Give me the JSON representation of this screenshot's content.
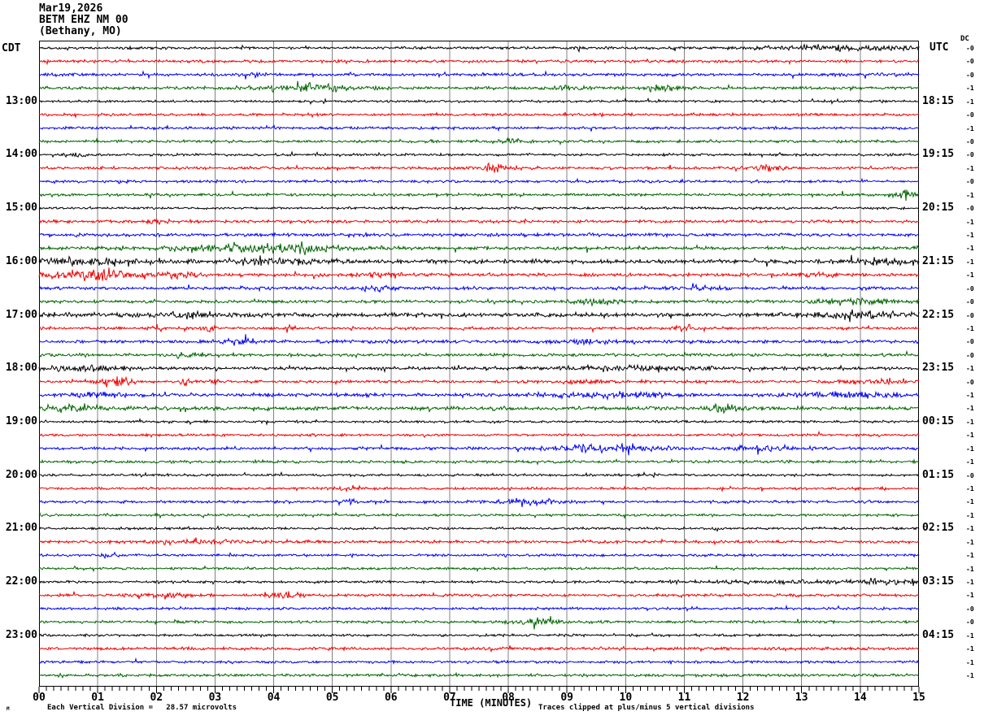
{
  "header": {
    "date": "Mar19,2026",
    "station": "BETM EHZ NM 00",
    "location": "(Bethany, MO)"
  },
  "axes": {
    "left_label": "CDT",
    "right_label": "UTC",
    "dc_label": "DC",
    "x_title": "TIME (MINUTES)",
    "footer_left": "Each Vertical Division =   28.57 microvolts",
    "footer_right": "Traces clipped at plus/minus 5 vertical divisions",
    "corner_glyph": "M",
    "x_ticks": [
      "00",
      "01",
      "02",
      "03",
      "04",
      "05",
      "06",
      "07",
      "08",
      "09",
      "10",
      "11",
      "12",
      "13",
      "14",
      "15"
    ],
    "left_times": [
      "13:00",
      "14:00",
      "15:00",
      "16:00",
      "17:00",
      "18:00",
      "19:00",
      "20:00",
      "21:00",
      "22:00",
      "23:00"
    ],
    "right_times": [
      "18:15",
      "19:15",
      "20:15",
      "21:15",
      "22:15",
      "23:15",
      "00:15",
      "01:15",
      "02:15",
      "03:15",
      "04:15"
    ]
  },
  "colors": {
    "black": "#000000",
    "red": "#ee0000",
    "blue": "#0000ee",
    "green": "#006400",
    "grid": "#808080",
    "frame": "#000000"
  },
  "chart_data": {
    "type": "line",
    "subtype": "helicorder",
    "title": "BETM EHZ NM 00 (Bethany, MO) Mar19,2026",
    "xlabel": "TIME (MINUTES)",
    "x_range_minutes": [
      0,
      15
    ],
    "minutes_per_line": 15,
    "lines_per_hour": 4,
    "grid": "vertical-minute-lines",
    "clip_note": "Traces clipped at plus/minus 5 vertical divisions",
    "vertical_division_microvolts": 28.57,
    "trace_color_cycle": [
      "black",
      "red",
      "blue",
      "green"
    ],
    "traces": [
      {
        "start_cdt": "12:00",
        "color": "black",
        "dc": "-0",
        "amp": 1.0,
        "events": [
          [
            13.8,
            1.3,
            1.8
          ]
        ]
      },
      {
        "start_cdt": "12:15",
        "color": "red",
        "dc": "-0",
        "amp": 1.0,
        "events": []
      },
      {
        "start_cdt": "12:30",
        "color": "blue",
        "dc": "-0",
        "amp": 1.1,
        "events": [
          [
            3.7,
            0.2,
            1.5
          ]
        ]
      },
      {
        "start_cdt": "12:45",
        "color": "green",
        "dc": "-1",
        "amp": 1.1,
        "events": [
          [
            4.5,
            0.8,
            2.2
          ],
          [
            9.0,
            0.3,
            1.6
          ],
          [
            10.6,
            0.3,
            1.4
          ]
        ]
      },
      {
        "start_cdt": "13:00",
        "color": "black",
        "dc": "-1",
        "amp": 0.9,
        "events": []
      },
      {
        "start_cdt": "13:15",
        "color": "red",
        "dc": "-0",
        "amp": 1.0,
        "events": []
      },
      {
        "start_cdt": "13:30",
        "color": "blue",
        "dc": "-1",
        "amp": 1.0,
        "events": []
      },
      {
        "start_cdt": "13:45",
        "color": "green",
        "dc": "-0",
        "amp": 1.0,
        "events": [
          [
            8.0,
            0.3,
            1.2
          ]
        ]
      },
      {
        "start_cdt": "14:00",
        "color": "black",
        "dc": "-0",
        "amp": 0.9,
        "events": [
          [
            0.6,
            0.2,
            1.5
          ]
        ]
      },
      {
        "start_cdt": "14:15",
        "color": "red",
        "dc": "-1",
        "amp": 1.0,
        "events": [
          [
            7.7,
            0.3,
            3.2
          ],
          [
            12.4,
            0.3,
            1.8
          ]
        ]
      },
      {
        "start_cdt": "14:30",
        "color": "blue",
        "dc": "-0",
        "amp": 1.0,
        "events": []
      },
      {
        "start_cdt": "14:45",
        "color": "green",
        "dc": "-1",
        "amp": 1.0,
        "events": [
          [
            14.75,
            0.15,
            3.2
          ]
        ]
      },
      {
        "start_cdt": "15:00",
        "color": "black",
        "dc": "-0",
        "amp": 0.9,
        "events": []
      },
      {
        "start_cdt": "15:15",
        "color": "red",
        "dc": "-1",
        "amp": 1.1,
        "events": [
          [
            2.0,
            0.15,
            1.6
          ]
        ]
      },
      {
        "start_cdt": "15:30",
        "color": "blue",
        "dc": "-1",
        "amp": 1.2,
        "events": []
      },
      {
        "start_cdt": "15:45",
        "color": "green",
        "dc": "-1",
        "amp": 1.3,
        "events": [
          [
            3.6,
            1.5,
            1.5
          ],
          [
            4.3,
            0.5,
            1.6
          ]
        ]
      },
      {
        "start_cdt": "16:00",
        "color": "black",
        "dc": "-1",
        "amp": 1.5,
        "events": [
          [
            0.7,
            0.7,
            1.2
          ],
          [
            4.0,
            0.8,
            1.2
          ],
          [
            14.4,
            0.5,
            1.2
          ]
        ]
      },
      {
        "start_cdt": "16:15",
        "color": "red",
        "dc": "-1",
        "amp": 1.2,
        "events": [
          [
            0.9,
            0.7,
            3.0
          ],
          [
            2.2,
            0.6,
            1.4
          ],
          [
            5.9,
            0.5,
            1.2
          ],
          [
            13.3,
            0.4,
            1.0
          ]
        ]
      },
      {
        "start_cdt": "16:30",
        "color": "blue",
        "dc": "-0",
        "amp": 1.2,
        "events": [
          [
            5.7,
            0.3,
            1.5
          ],
          [
            11.2,
            0.3,
            1.1
          ]
        ]
      },
      {
        "start_cdt": "16:45",
        "color": "green",
        "dc": "-0",
        "amp": 1.1,
        "events": [
          [
            9.5,
            0.3,
            1.8
          ],
          [
            13.9,
            0.8,
            1.4
          ]
        ]
      },
      {
        "start_cdt": "17:00",
        "color": "black",
        "dc": "-0",
        "amp": 1.6,
        "events": [
          [
            2.6,
            0.4,
            1.2
          ],
          [
            14.0,
            0.8,
            1.1
          ]
        ]
      },
      {
        "start_cdt": "17:15",
        "color": "red",
        "dc": "-1",
        "amp": 1.0,
        "events": [
          [
            2.0,
            0.08,
            2.6
          ],
          [
            2.9,
            0.1,
            3.0
          ],
          [
            4.3,
            0.08,
            2.2
          ],
          [
            11.0,
            0.08,
            2.6
          ]
        ]
      },
      {
        "start_cdt": "17:30",
        "color": "blue",
        "dc": "-0",
        "amp": 1.2,
        "events": [
          [
            3.4,
            0.25,
            2.0
          ],
          [
            9.3,
            0.2,
            1.4
          ]
        ]
      },
      {
        "start_cdt": "17:45",
        "color": "green",
        "dc": "-0",
        "amp": 1.1,
        "events": [
          [
            2.5,
            0.3,
            1.2
          ]
        ]
      },
      {
        "start_cdt": "18:00",
        "color": "black",
        "dc": "-1",
        "amp": 1.2,
        "events": [
          [
            0.8,
            0.8,
            1.1
          ],
          [
            10.0,
            1.2,
            1.1
          ]
        ]
      },
      {
        "start_cdt": "18:15",
        "color": "red",
        "dc": "-0",
        "amp": 1.0,
        "events": [
          [
            1.3,
            0.22,
            4.5
          ],
          [
            2.5,
            0.08,
            2.2
          ],
          [
            3.0,
            0.08,
            2.2
          ],
          [
            9.3,
            0.4,
            1.4
          ],
          [
            14.2,
            0.6,
            1.2
          ]
        ]
      },
      {
        "start_cdt": "18:30",
        "color": "blue",
        "dc": "-1",
        "amp": 1.3,
        "events": [
          [
            1.0,
            0.5,
            1.3
          ],
          [
            9.7,
            0.9,
            1.3
          ],
          [
            13.8,
            0.8,
            1.3
          ]
        ]
      },
      {
        "start_cdt": "18:45",
        "color": "green",
        "dc": "-1",
        "amp": 1.4,
        "events": [
          [
            0.5,
            0.6,
            1.3
          ],
          [
            11.7,
            0.2,
            2.0
          ]
        ]
      },
      {
        "start_cdt": "19:00",
        "color": "black",
        "dc": "-1",
        "amp": 0.9,
        "events": []
      },
      {
        "start_cdt": "19:15",
        "color": "red",
        "dc": "-1",
        "amp": 0.9,
        "events": []
      },
      {
        "start_cdt": "19:30",
        "color": "blue",
        "dc": "-1",
        "amp": 1.1,
        "events": [
          [
            9.6,
            0.9,
            2.6
          ],
          [
            12.3,
            0.5,
            1.4
          ]
        ]
      },
      {
        "start_cdt": "19:45",
        "color": "green",
        "dc": "-1",
        "amp": 1.0,
        "events": []
      },
      {
        "start_cdt": "20:00",
        "color": "black",
        "dc": "-0",
        "amp": 0.9,
        "events": []
      },
      {
        "start_cdt": "20:15",
        "color": "red",
        "dc": "-1",
        "amp": 0.9,
        "events": [
          [
            5.3,
            0.3,
            1.4
          ]
        ]
      },
      {
        "start_cdt": "20:30",
        "color": "blue",
        "dc": "-1",
        "amp": 1.0,
        "events": [
          [
            5.2,
            0.15,
            1.8
          ],
          [
            8.3,
            0.55,
            2.0
          ]
        ]
      },
      {
        "start_cdt": "20:45",
        "color": "green",
        "dc": "-1",
        "amp": 0.9,
        "events": []
      },
      {
        "start_cdt": "21:00",
        "color": "black",
        "dc": "-1",
        "amp": 0.9,
        "events": []
      },
      {
        "start_cdt": "21:15",
        "color": "red",
        "dc": "-1",
        "amp": 1.0,
        "events": [
          [
            2.5,
            1.0,
            1.0
          ]
        ]
      },
      {
        "start_cdt": "21:30",
        "color": "blue",
        "dc": "-1",
        "amp": 0.9,
        "events": [
          [
            1.2,
            0.1,
            2.0
          ]
        ]
      },
      {
        "start_cdt": "21:45",
        "color": "green",
        "dc": "-1",
        "amp": 0.9,
        "events": []
      },
      {
        "start_cdt": "22:00",
        "color": "black",
        "dc": "-1",
        "amp": 0.9,
        "events": [
          [
            12.5,
            1.5,
            0.8
          ],
          [
            14.5,
            0.5,
            1.8
          ]
        ]
      },
      {
        "start_cdt": "22:15",
        "color": "red",
        "dc": "-1",
        "amp": 1.0,
        "events": [
          [
            2.2,
            0.5,
            1.8
          ],
          [
            4.2,
            0.25,
            3.0
          ]
        ]
      },
      {
        "start_cdt": "22:30",
        "color": "blue",
        "dc": "-0",
        "amp": 0.9,
        "events": []
      },
      {
        "start_cdt": "22:45",
        "color": "green",
        "dc": "-0",
        "amp": 1.0,
        "events": [
          [
            8.5,
            0.35,
            2.6
          ]
        ]
      },
      {
        "start_cdt": "23:00",
        "color": "black",
        "dc": "-1",
        "amp": 0.9,
        "events": []
      },
      {
        "start_cdt": "23:15",
        "color": "red",
        "dc": "-1",
        "amp": 1.1,
        "events": []
      },
      {
        "start_cdt": "23:30",
        "color": "blue",
        "dc": "-1",
        "amp": 0.9,
        "events": []
      },
      {
        "start_cdt": "23:45",
        "color": "green",
        "dc": "-1",
        "amp": 1.0,
        "events": []
      }
    ]
  }
}
